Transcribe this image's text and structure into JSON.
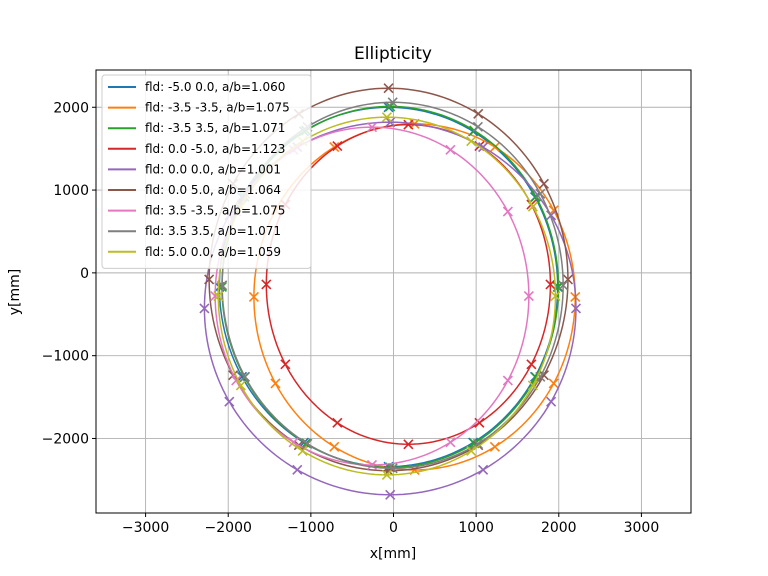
{
  "chart_data": {
    "type": "line",
    "title": "Ellipticity",
    "xlabel": "x[mm]",
    "ylabel": "y[mm]",
    "xlim": [
      -3600,
      3600
    ],
    "ylim": [
      -2900,
      2450
    ],
    "xticks": [
      -3000,
      -2000,
      -1000,
      0,
      1000,
      2000,
      3000
    ],
    "yticks": [
      -2000,
      -1000,
      0,
      1000,
      2000
    ],
    "xtick_labels": [
      "−3000",
      "−2000",
      "−1000",
      "0",
      "1000",
      "2000",
      "3000"
    ],
    "ytick_labels": [
      "−2000",
      "−1000",
      "0",
      "1000",
      "2000"
    ],
    "grid": true,
    "legend_position": "top-left",
    "marker": "x",
    "series": [
      {
        "name": "fld: -5.0 0.0, a/b=1.060",
        "color": "#1f77b4",
        "center": [
          -60,
          -170
        ],
        "a": 2170,
        "b": 2047,
        "markers_deg": [
          0,
          30,
          60,
          90,
          120,
          150,
          180,
          210,
          240,
          270,
          300,
          330
        ]
      },
      {
        "name": "fld: -3.5 -3.5, a/b=1.075",
        "color": "#ff7f0e",
        "center": [
          255,
          -290
        ],
        "a": 2090,
        "b": 1944,
        "markers_deg": [
          0,
          30,
          60,
          90,
          120,
          150,
          180,
          210,
          240,
          270,
          300,
          330
        ]
      },
      {
        "name": "fld: -3.5 3.5, a/b=1.071",
        "color": "#2ca02c",
        "center": [
          -40,
          -170
        ],
        "a": 2180,
        "b": 2036,
        "markers_deg": [
          0,
          30,
          60,
          90,
          120,
          150,
          180,
          210,
          240,
          270,
          300,
          330
        ]
      },
      {
        "name": "fld: 0.0 -5.0, a/b=1.123",
        "color": "#d62728",
        "center": [
          180,
          -140
        ],
        "a": 1930,
        "b": 1719,
        "markers_deg": [
          0,
          30,
          60,
          90,
          120,
          150,
          180,
          210,
          240,
          270,
          300,
          330
        ]
      },
      {
        "name": "fld: 0.0 0.0, a/b=1.001",
        "color": "#9467bd",
        "center": [
          -40,
          -430
        ],
        "a": 2250,
        "b": 2248,
        "markers_deg": [
          0,
          30,
          60,
          90,
          120,
          150,
          180,
          210,
          240,
          270,
          300,
          330
        ]
      },
      {
        "name": "fld: 0.0 5.0, a/b=1.064",
        "color": "#8c564b",
        "center": [
          -60,
          -80
        ],
        "a": 2310,
        "b": 2171,
        "markers_deg": [
          0,
          30,
          60,
          90,
          120,
          150,
          180,
          210,
          240,
          270,
          300,
          330
        ]
      },
      {
        "name": "fld: 3.5 -3.5, a/b=1.075",
        "color": "#e377c2",
        "center": [
          -260,
          -280
        ],
        "a": 2040,
        "b": 1898,
        "markers_deg": [
          0,
          30,
          60,
          90,
          120,
          150,
          180,
          210,
          240,
          270,
          300,
          330
        ]
      },
      {
        "name": "fld: 3.5 3.5, a/b=1.071",
        "color": "#7f7f7f",
        "center": [
          -10,
          -150
        ],
        "a": 2210,
        "b": 2063,
        "markers_deg": [
          0,
          30,
          60,
          90,
          120,
          150,
          180,
          210,
          240,
          270,
          300,
          330
        ]
      },
      {
        "name": "fld: 5.0 0.0, a/b=1.059",
        "color": "#bcbd22",
        "center": [
          -80,
          -280
        ],
        "a": 2160,
        "b": 2040,
        "markers_deg": [
          0,
          30,
          60,
          90,
          120,
          150,
          180,
          210,
          240,
          270,
          300,
          330
        ]
      }
    ]
  }
}
